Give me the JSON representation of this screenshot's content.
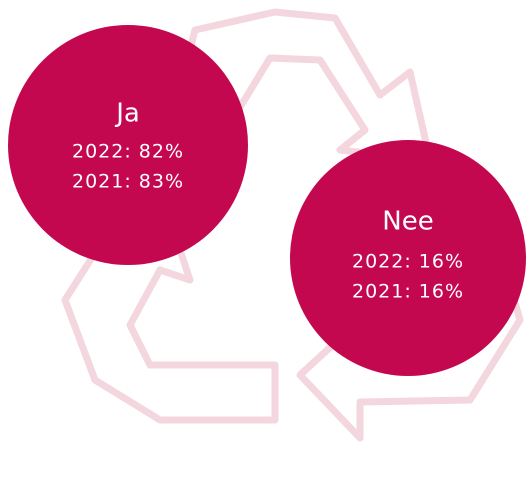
{
  "circles": [
    {
      "label": "Ja",
      "lines": [
        "2022: 82%",
        "2021: 83%"
      ]
    },
    {
      "label": "Nee",
      "lines": [
        "2022: 16%",
        "2021: 16%"
      ]
    }
  ]
}
